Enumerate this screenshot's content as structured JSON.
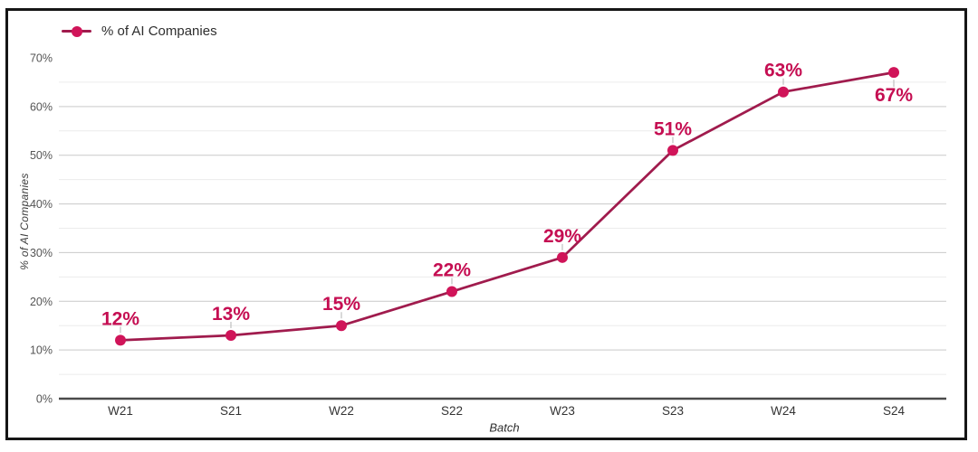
{
  "legend": {
    "label": "% of AI Companies"
  },
  "axes": {
    "y_title": "% of AI Companies",
    "x_title": "Batch",
    "y_ticks": [
      "0%",
      "10%",
      "20%",
      "30%",
      "40%",
      "50%",
      "60%",
      "70%"
    ],
    "x_ticks": [
      "W21",
      "S21",
      "W22",
      "S22",
      "W23",
      "S23",
      "W24",
      "S24"
    ]
  },
  "colors": {
    "line": "#a01b4d",
    "point": "#d01459",
    "point_label": "#c50e52",
    "leader_line": "#b3b3b3",
    "grid_minor": "#ececec",
    "grid_major": "#c9c9c9",
    "axis_line": "#4a4a4a",
    "y_tick_text": "#555555",
    "x_tick_text": "#333333",
    "frame_border": "#161616"
  },
  "chart_data": {
    "type": "line",
    "categories": [
      "W21",
      "S21",
      "W22",
      "S22",
      "W23",
      "S23",
      "W24",
      "S24"
    ],
    "series": [
      {
        "name": "% of AI Companies",
        "values": [
          12,
          13,
          15,
          22,
          29,
          51,
          63,
          67
        ]
      }
    ],
    "point_labels": [
      "12%",
      "13%",
      "15%",
      "22%",
      "29%",
      "51%",
      "63%",
      "67%"
    ],
    "label_positions": [
      "above",
      "above",
      "above",
      "above",
      "above",
      "above",
      "above",
      "below"
    ],
    "xlabel": "Batch",
    "ylabel": "% of AI Companies",
    "ylim": [
      0,
      70
    ],
    "y_tick_step_major": 10,
    "y_grid_step_minor": 5,
    "grid": "horizontal",
    "legend_position": "top-left"
  }
}
